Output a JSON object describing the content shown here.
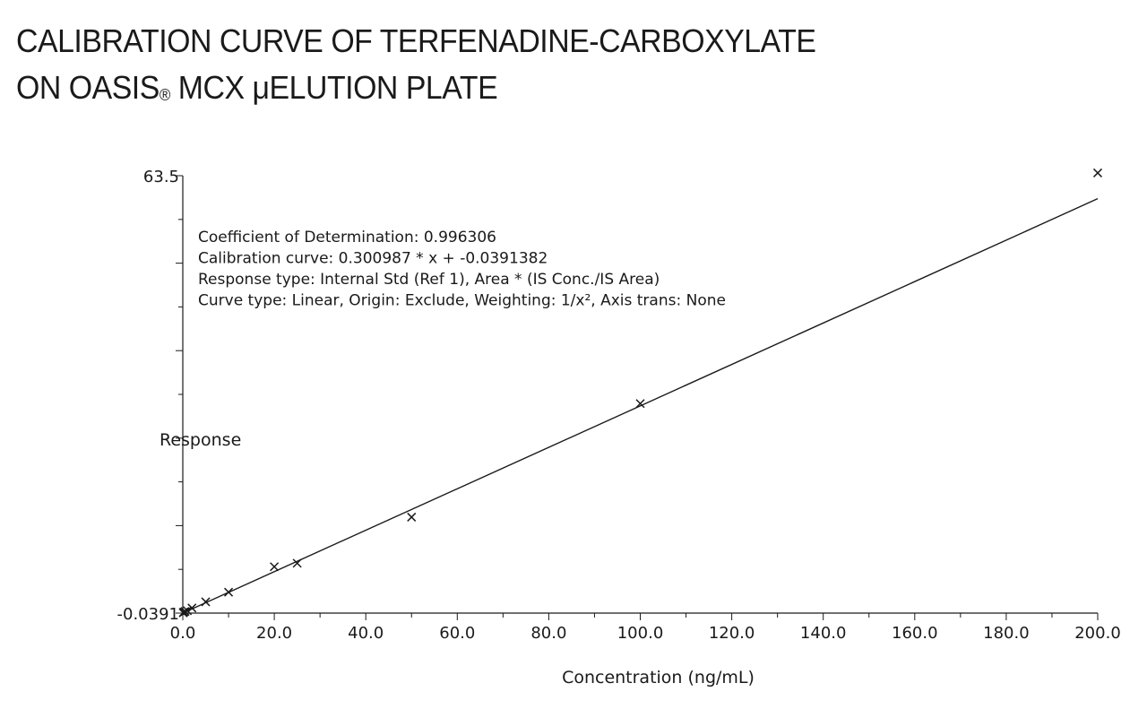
{
  "title": {
    "line1": "CALIBRATION CURVE OF TERFENADINE-CARBOXYLATE",
    "line2_prefix": "ON OASIS",
    "line2_reg": "®",
    "line2_suffix": " MCX μELUTION PLATE"
  },
  "chart_data": {
    "type": "scatter",
    "xlabel": "Concentration (ng/mL)",
    "ylabel": "Response",
    "xlim": [
      0,
      200
    ],
    "ylim": [
      -0.0391,
      63.5
    ],
    "x_ticks": [
      "0.0",
      "20.0",
      "40.0",
      "60.0",
      "80.0",
      "100.0",
      "120.0",
      "140.0",
      "160.0",
      "180.0",
      "200.0"
    ],
    "y_tick_labels": [
      "63.5",
      "-0.0391"
    ],
    "grid": false,
    "series": [
      {
        "marker": "x",
        "x": [
          0.1,
          0.2,
          0.5,
          1,
          2,
          5,
          10,
          20,
          25,
          50,
          100,
          200
        ],
        "y": [
          0.0,
          0.1,
          0.2,
          0.3,
          0.7,
          1.6,
          3.0,
          6.7,
          7.2,
          13.9,
          30.4,
          63.9
        ]
      }
    ],
    "fit_line": {
      "slope": 0.300987,
      "intercept": -0.0391382,
      "x_range": [
        0,
        200
      ]
    },
    "annotations": [
      "Coefficient of Determination: 0.996306",
      "Calibration curve: 0.300987 * x + -0.0391382",
      "Response type: Internal Std (Ref 1), Area * (IS Conc./IS Area)",
      "Curve type: Linear, Origin: Exclude, Weighting: 1/x², Axis trans: None"
    ]
  }
}
